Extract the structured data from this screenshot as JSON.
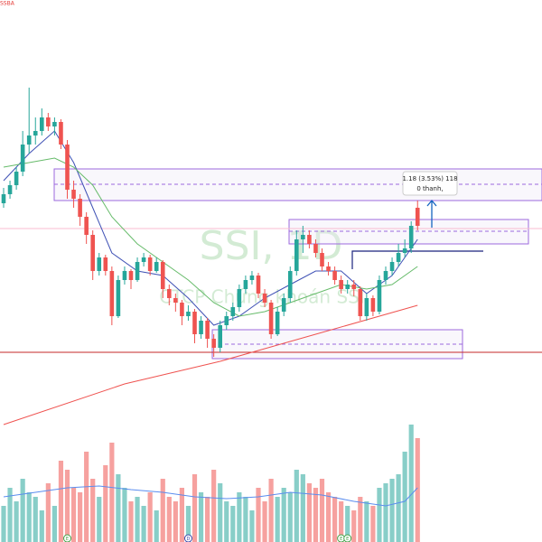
{
  "chart_data": {
    "type": "candlestick",
    "symbol": "SSBA",
    "watermark": "SSI, 1D",
    "watermark_subtitle": "CTCP Chứng khoán SSI",
    "annotation": {
      "line1": "1.18 (3.53%) 118",
      "line2": "0 thanh,"
    },
    "events": [
      {
        "index": 10,
        "label": "E"
      },
      {
        "index": 29,
        "label": "D"
      },
      {
        "index": 53,
        "label": "E"
      },
      {
        "index": 54,
        "label": "E"
      }
    ],
    "ylim": [
      0,
      600
    ],
    "up_color": "#26a69a",
    "down_color": "#ef5350",
    "ohlc": [
      [
        375,
        392,
        370,
        385
      ],
      [
        385,
        400,
        380,
        395
      ],
      [
        395,
        415,
        390,
        410
      ],
      [
        410,
        455,
        405,
        440
      ],
      [
        440,
        503,
        430,
        450
      ],
      [
        450,
        470,
        440,
        455
      ],
      [
        455,
        480,
        450,
        470
      ],
      [
        470,
        475,
        455,
        460
      ],
      [
        460,
        470,
        450,
        465
      ],
      [
        465,
        468,
        435,
        440
      ],
      [
        440,
        445,
        380,
        390
      ],
      [
        390,
        400,
        370,
        380
      ],
      [
        380,
        385,
        350,
        360
      ],
      [
        360,
        365,
        330,
        340
      ],
      [
        340,
        345,
        290,
        300
      ],
      [
        300,
        320,
        295,
        315
      ],
      [
        315,
        318,
        295,
        300
      ],
      [
        300,
        305,
        240,
        250
      ],
      [
        250,
        295,
        248,
        290
      ],
      [
        290,
        305,
        285,
        300
      ],
      [
        300,
        302,
        280,
        290
      ],
      [
        290,
        315,
        288,
        310
      ],
      [
        310,
        320,
        305,
        315
      ],
      [
        315,
        318,
        295,
        300
      ],
      [
        300,
        315,
        298,
        310
      ],
      [
        310,
        312,
        270,
        280
      ],
      [
        280,
        285,
        262,
        270
      ],
      [
        270,
        275,
        255,
        265
      ],
      [
        265,
        268,
        240,
        250
      ],
      [
        250,
        262,
        245,
        255
      ],
      [
        255,
        258,
        220,
        230
      ],
      [
        230,
        250,
        225,
        245
      ],
      [
        245,
        248,
        215,
        225
      ],
      [
        225,
        230,
        205,
        215
      ],
      [
        215,
        245,
        210,
        240
      ],
      [
        240,
        255,
        235,
        250
      ],
      [
        250,
        265,
        245,
        260
      ],
      [
        260,
        285,
        255,
        280
      ],
      [
        280,
        295,
        275,
        290
      ],
      [
        290,
        300,
        285,
        295
      ],
      [
        295,
        298,
        270,
        275
      ],
      [
        275,
        280,
        260,
        265
      ],
      [
        265,
        268,
        225,
        230
      ],
      [
        230,
        260,
        228,
        255
      ],
      [
        255,
        275,
        250,
        270
      ],
      [
        270,
        305,
        265,
        300
      ],
      [
        300,
        345,
        295,
        335
      ],
      [
        335,
        350,
        320,
        340
      ],
      [
        340,
        345,
        325,
        330
      ],
      [
        330,
        335,
        315,
        320
      ],
      [
        320,
        325,
        300,
        305
      ],
      [
        305,
        310,
        295,
        300
      ],
      [
        300,
        305,
        285,
        290
      ],
      [
        290,
        295,
        275,
        280
      ],
      [
        280,
        290,
        275,
        285
      ],
      [
        285,
        290,
        272,
        280
      ],
      [
        280,
        283,
        245,
        250
      ],
      [
        250,
        275,
        245,
        270
      ],
      [
        270,
        273,
        250,
        255
      ],
      [
        255,
        295,
        252,
        290
      ],
      [
        290,
        305,
        285,
        300
      ],
      [
        300,
        315,
        295,
        310
      ],
      [
        310,
        330,
        305,
        320
      ],
      [
        320,
        335,
        315,
        325
      ],
      [
        325,
        355,
        320,
        350
      ],
      [
        370,
        378,
        345,
        350
      ]
    ],
    "volume": [
      40,
      60,
      45,
      70,
      55,
      50,
      35,
      65,
      40,
      90,
      80,
      60,
      55,
      100,
      70,
      50,
      85,
      110,
      75,
      60,
      45,
      50,
      40,
      55,
      35,
      70,
      50,
      45,
      60,
      40,
      75,
      55,
      50,
      80,
      65,
      45,
      40,
      55,
      50,
      35,
      60,
      45,
      70,
      50,
      60,
      55,
      80,
      75,
      65,
      60,
      70,
      55,
      50,
      45,
      40,
      35,
      50,
      45,
      40,
      60,
      65,
      70,
      75,
      100,
      130,
      115
    ],
    "volume_ma": {
      "color": "#5b8def",
      "x": [
        0,
        5,
        10,
        15,
        20,
        25,
        30,
        35,
        40,
        45,
        50,
        55,
        60,
        63,
        65
      ],
      "values": [
        50,
        55,
        60,
        62,
        58,
        55,
        50,
        48,
        50,
        55,
        52,
        45,
        40,
        45,
        60
      ]
    },
    "series": [
      {
        "color": "#3f51b5",
        "x": [
          0,
          4,
          8,
          11,
          14,
          17,
          21,
          25,
          29,
          33,
          37,
          41,
          45,
          49,
          53,
          57,
          61,
          65
        ],
        "values": [
          400,
          430,
          455,
          420,
          370,
          320,
          300,
          295,
          270,
          240,
          250,
          270,
          285,
          300,
          300,
          275,
          295,
          335
        ]
      },
      {
        "color": "#66bb6a",
        "x": [
          0,
          4,
          8,
          11,
          14,
          17,
          21,
          25,
          29,
          33,
          37,
          41,
          45,
          49,
          53,
          57,
          61,
          65
        ],
        "values": [
          415,
          420,
          425,
          415,
          395,
          360,
          330,
          310,
          290,
          265,
          250,
          255,
          265,
          275,
          285,
          280,
          285,
          305
        ]
      },
      {
        "color": "#ef5350",
        "x": [
          0,
          19,
          34,
          49,
          65
        ],
        "values": [
          130,
          175,
          200,
          230,
          262
        ]
      }
    ]
  }
}
